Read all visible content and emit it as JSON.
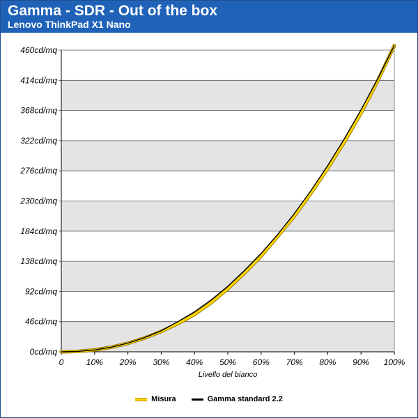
{
  "header": {
    "title": "Gamma - SDR - Out of the box",
    "subtitle": "Lenovo ThinkPad X1 Nano"
  },
  "colors": {
    "header_bg": "#1f62b8",
    "band_light": "#ffffff",
    "band_dark": "#e4e4e4",
    "misura": "#ffd400",
    "gamma": "#000000"
  },
  "chart_data": {
    "type": "line",
    "title": "Gamma - SDR - Out of the box",
    "subtitle": "Lenovo ThinkPad X1 Nano",
    "xlabel": "Livello del bianco",
    "ylabel": "",
    "x": [
      0,
      5,
      10,
      15,
      20,
      25,
      30,
      35,
      40,
      45,
      50,
      55,
      60,
      65,
      70,
      75,
      80,
      85,
      90,
      95,
      100
    ],
    "x_ticks": [
      "0",
      "10%",
      "20%",
      "30%",
      "40%",
      "50%",
      "60%",
      "70%",
      "80%",
      "90%",
      "100%"
    ],
    "y_ticks": [
      "0cd/mq",
      "46cd/mq",
      "92cd/mq",
      "138cd/mq",
      "184cd/mq",
      "230cd/mq",
      "276cd/mq",
      "322cd/mq",
      "368cd/mq",
      "414cd/mq",
      "460cd/mq"
    ],
    "xlim": [
      0,
      100
    ],
    "ylim": [
      0,
      460
    ],
    "grid": true,
    "legend_position": "bottom-center",
    "series": [
      {
        "name": "Misura",
        "color": "#ffd400",
        "values": [
          0,
          0.6,
          2.8,
          7,
          13,
          21,
          31,
          43,
          57,
          75,
          96,
          120,
          146,
          176,
          207,
          242,
          280,
          320,
          364,
          413,
          467
        ]
      },
      {
        "name": "Gamma standard 2.2",
        "color": "#000000",
        "values": [
          0,
          0.6,
          2.9,
          7.1,
          13.3,
          21.6,
          32,
          46,
          61,
          79,
          100,
          124,
          150,
          179,
          211,
          246,
          284,
          325,
          369,
          416,
          467
        ]
      }
    ]
  }
}
